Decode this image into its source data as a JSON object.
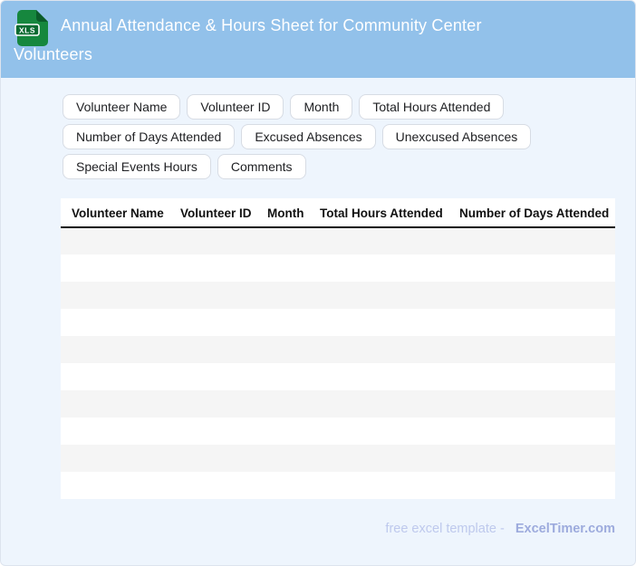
{
  "header": {
    "title": "Annual Attendance & Hours Sheet for Community Center Volunteers",
    "file_icon": {
      "name": "xls-file-icon",
      "label": "XLS"
    },
    "bg_color": "#92c1ea",
    "title_color": "#ffffff"
  },
  "field_chips": {
    "items": [
      "Volunteer Name",
      "Volunteer ID",
      "Month",
      "Total Hours Attended",
      "Number of Days Attended",
      "Excused Absences",
      "Unexcused Absences",
      "Special Events Hours",
      "Comments"
    ]
  },
  "table": {
    "columns": [
      "Volunteer Name",
      "Volunteer ID",
      "Month",
      "Total Hours Attended",
      "Number of Days Attended"
    ],
    "visible_empty_rows": 10,
    "stripe_color": "#f5f5f5",
    "header_rule_color": "#111111"
  },
  "footer": {
    "label": "free excel template -",
    "brand": "ExcelTimer.com",
    "label_color": "#bec9ed",
    "brand_color": "#9dabdd"
  },
  "page": {
    "background_color": "#eef5fd",
    "card_border_color": "#dde4ee"
  }
}
